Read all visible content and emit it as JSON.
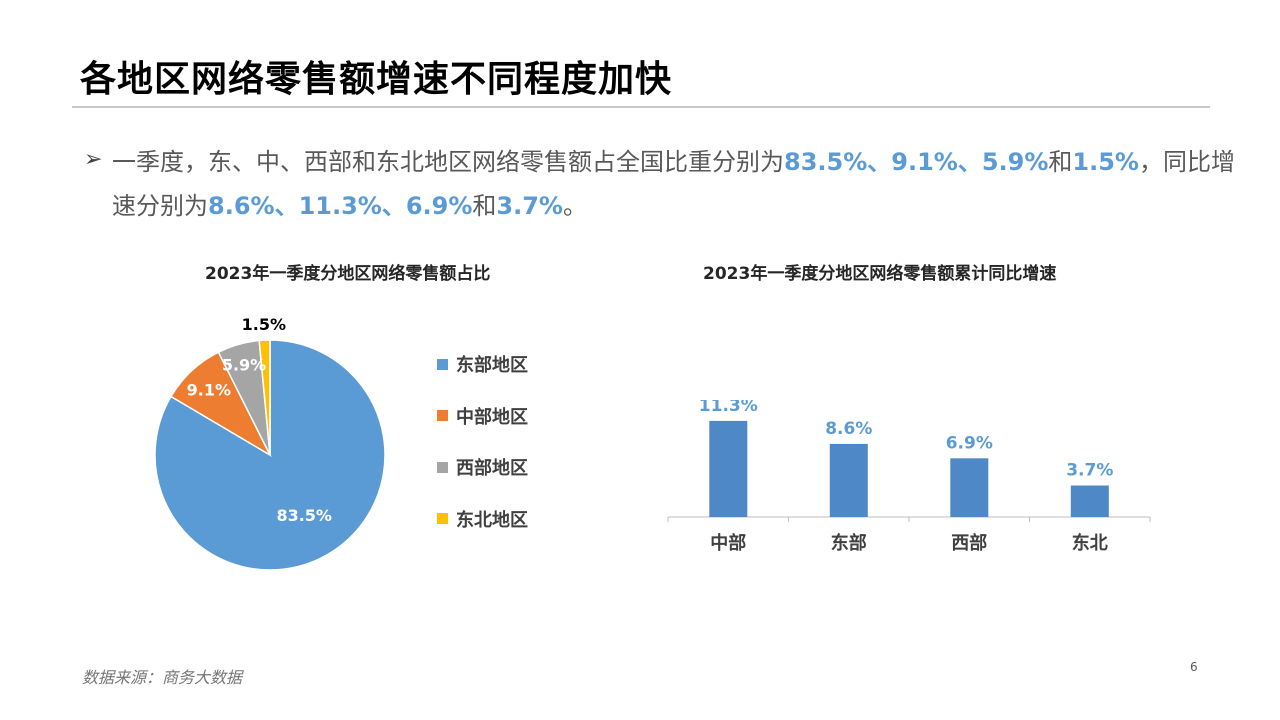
{
  "title": "各地区网络零售额增速不同程度加快",
  "bullet_symbol": "➢",
  "paragraph": {
    "p1": "一季度，东、中、西部和东北地区网络零售额占全国比重分别为",
    "v1": "83.5%",
    "sep1": "、",
    "v2": "9.1%",
    "sep2": "、",
    "v3": "5.9%",
    "and1": "和",
    "v4": "1.5%",
    "p2": "，同比增",
    "p3": "速分别为",
    "v5": "8.6%",
    "sep3": "、",
    "v6": "11.3%",
    "sep4": "、",
    "v7": "6.9%",
    "and2": "和",
    "v8": "3.7%",
    "end": "。"
  },
  "source": "数据来源：商务大数据",
  "page_number": "6",
  "colors": {
    "east": "#5b9bd5",
    "central": "#ed7d31",
    "west": "#a5a5a5",
    "northeast": "#ffc000",
    "bar": "#4f88c6",
    "highlight": "#5b9bd5"
  },
  "chart_data": [
    {
      "type": "pie",
      "title": "2023年一季度分地区网络零售额占比",
      "categories": [
        "东部地区",
        "中部地区",
        "西部地区",
        "东北地区"
      ],
      "values": [
        83.5,
        9.1,
        5.9,
        1.5
      ],
      "labels": [
        "83.5%",
        "9.1%",
        "5.9%",
        "1.5%"
      ],
      "legend_position": "right"
    },
    {
      "type": "bar",
      "title": "2023年一季度分地区网络零售额累计同比增速",
      "categories": [
        "中部",
        "东部",
        "西部",
        "东北"
      ],
      "values": [
        11.3,
        8.6,
        6.9,
        3.7
      ],
      "labels": [
        "11.3%",
        "8.6%",
        "6.9%",
        "3.7%"
      ],
      "ylim": [
        0,
        12
      ],
      "grid": false
    }
  ]
}
